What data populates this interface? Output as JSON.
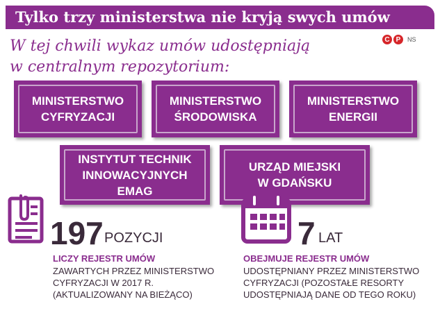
{
  "header": {
    "title": "Tylko trzy ministerstwa nie kryją swych umów"
  },
  "credits": {
    "badge1": "C",
    "badge2": "P",
    "ns": "NS"
  },
  "subtitle": "W tej chwili wykaz umów udostępniają\nw centralnym repozytorium:",
  "plaques": [
    {
      "label": "MINISTERSTWO\nCYFRYZACJI"
    },
    {
      "label": "MINISTERSTWO\nŚRODOWISKA"
    },
    {
      "label": "MINISTERSTWO\nENERGII"
    },
    {
      "label": "INSTYTUT TECHNIK\nINNOWACYJNYCH\nEMAG"
    },
    {
      "label": "URZĄD MIEJSKI\nW GDAŃSKU"
    }
  ],
  "stats": [
    {
      "value": "197",
      "unit": "POZYCJI",
      "label": "LICZY REJESTR UMÓW",
      "description": "ZAWARTYCH PRZEZ MINISTERSTWO\nCYFRYZACJI W 2017 R.\n(AKTUALIZOWANY NA BIEŻĄCO)",
      "icon": "document-clip-icon"
    },
    {
      "value": "7",
      "unit": "LAT",
      "label": "OBEJMUJE REJESTR UMÓW",
      "description": "UDOSTĘPNIANY PRZEZ MINISTERSTWO\nCYFRYZACJI (POZOSTAŁE RESORTY\nUDOSTĘPNIAJĄ DANE OD TEGO ROKU)",
      "icon": "calendar-icon"
    }
  ],
  "colors": {
    "accent": "#8a2d8e",
    "text": "#3a2a3a",
    "credit": "#d6262a"
  }
}
